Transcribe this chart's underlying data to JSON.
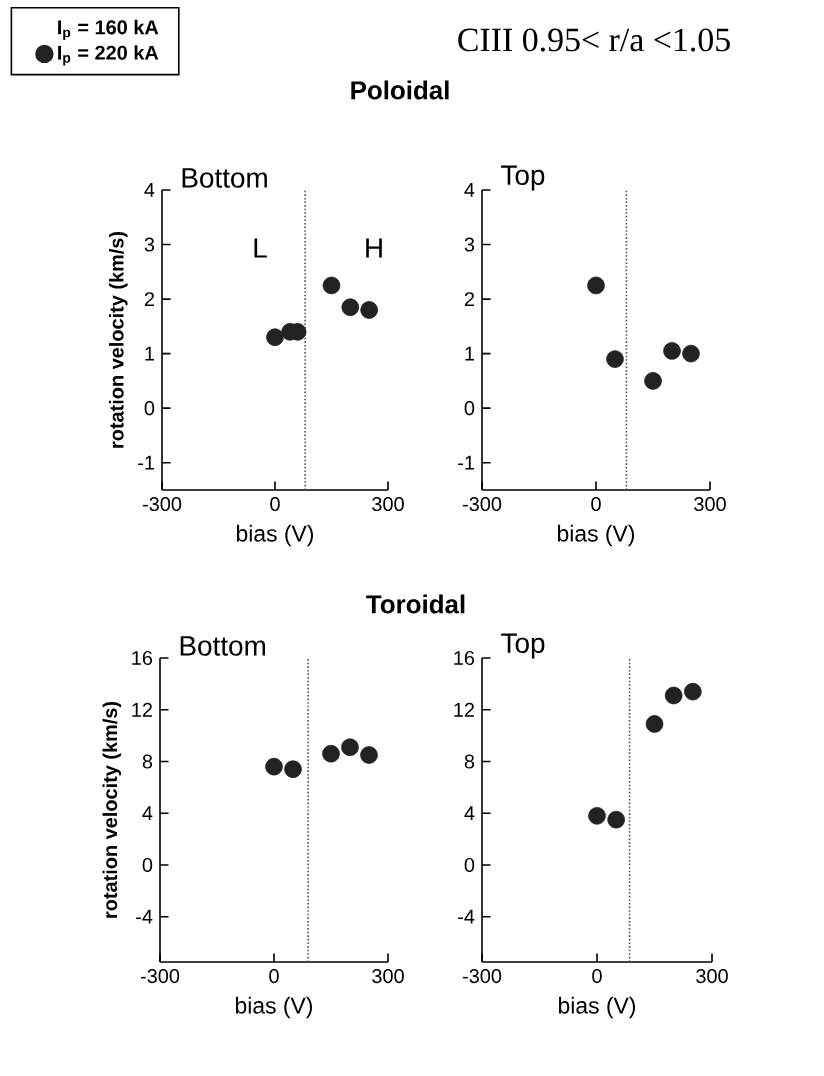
{
  "chart_data": [
    {
      "type": "scatter",
      "title": "Bottom",
      "subtitle": "Poloidal",
      "xlabel": "bias (V)",
      "ylabel": "rotation velocity (km/s)",
      "xlim": [
        -300,
        300
      ],
      "ylim": [
        -1.5,
        4
      ],
      "xticks": [
        -300,
        0,
        300
      ],
      "yticks": [
        -1,
        0,
        1,
        2,
        3,
        4
      ],
      "marker": "circle",
      "legend": "top left",
      "annotations": [
        "CIII 0.95< r/a <1.05",
        "L",
        "H"
      ],
      "ref_lines": [
        {
          "axis": "x",
          "value": 80,
          "line_style": "dotted",
          "color": "#555555"
        }
      ],
      "series": [
        {
          "name": "I$_{p}$ = 160 kA",
          "color": "#222222",
          "marker": "none"
        },
        {
          "name": "I$_{p}$ = 220 kA",
          "color": "#222222",
          "x": [
            0,
            40,
            60,
            150,
            200,
            250
          ],
          "values": [
            1.3,
            1.4,
            1.4,
            2.25,
            1.85,
            1.8
          ]
        }
      ]
    },
    {
      "type": "scatter",
      "title": "Top",
      "xlabel": "bias (V)",
      "xlim": [
        -300,
        300
      ],
      "ylim": [
        -1.5,
        4
      ],
      "xticks": [
        -300,
        0,
        300
      ],
      "yticks": [
        -1,
        0,
        1,
        2,
        3,
        4
      ],
      "marker": "circle",
      "ref_lines": [
        {
          "axis": "x",
          "value": 80,
          "line_style": "dotted",
          "color": "#555555"
        }
      ],
      "series": [
        {
          "color": "#222222",
          "x": [
            0,
            50,
            150,
            200,
            250
          ],
          "values": [
            2.25,
            0.9,
            0.5,
            1.05,
            1.0
          ]
        }
      ]
    },
    {
      "type": "scatter",
      "title": "Bottom",
      "subtitle": "Toroidal",
      "xlabel": "bias (V)",
      "ylabel": "rotation velocity (km/s)",
      "xlim": [
        -300,
        300
      ],
      "ylim": [
        -7.5,
        16
      ],
      "xticks": [
        -300,
        0,
        300
      ],
      "yticks": [
        -4,
        0,
        4,
        8,
        12,
        16
      ],
      "marker": "circle",
      "ref_lines": [
        {
          "axis": "x",
          "value": 90,
          "line_style": "dotted",
          "color": "#555555"
        }
      ],
      "series": [
        {
          "color": "#222222",
          "x": [
            0,
            50,
            150,
            200,
            250
          ],
          "values": [
            7.6,
            7.4,
            8.6,
            9.1,
            8.5
          ]
        }
      ]
    },
    {
      "type": "scatter",
      "title": "Top",
      "xlabel": "bias (V)",
      "xlim": [
        -300,
        300
      ],
      "ylim": [
        -7.5,
        16
      ],
      "xticks": [
        -300,
        0,
        300
      ],
      "yticks": [
        -4,
        0,
        4,
        8,
        12,
        16
      ],
      "marker": "circle",
      "ref_lines": [
        {
          "axis": "x",
          "value": 85,
          "line_style": "dotted",
          "color": "#555555"
        }
      ],
      "series": [
        {
          "color": "#222222",
          "x": [
            0,
            50,
            150,
            200,
            250
          ],
          "values": [
            3.8,
            3.5,
            10.9,
            13.1,
            13.4
          ]
        }
      ]
    }
  ]
}
